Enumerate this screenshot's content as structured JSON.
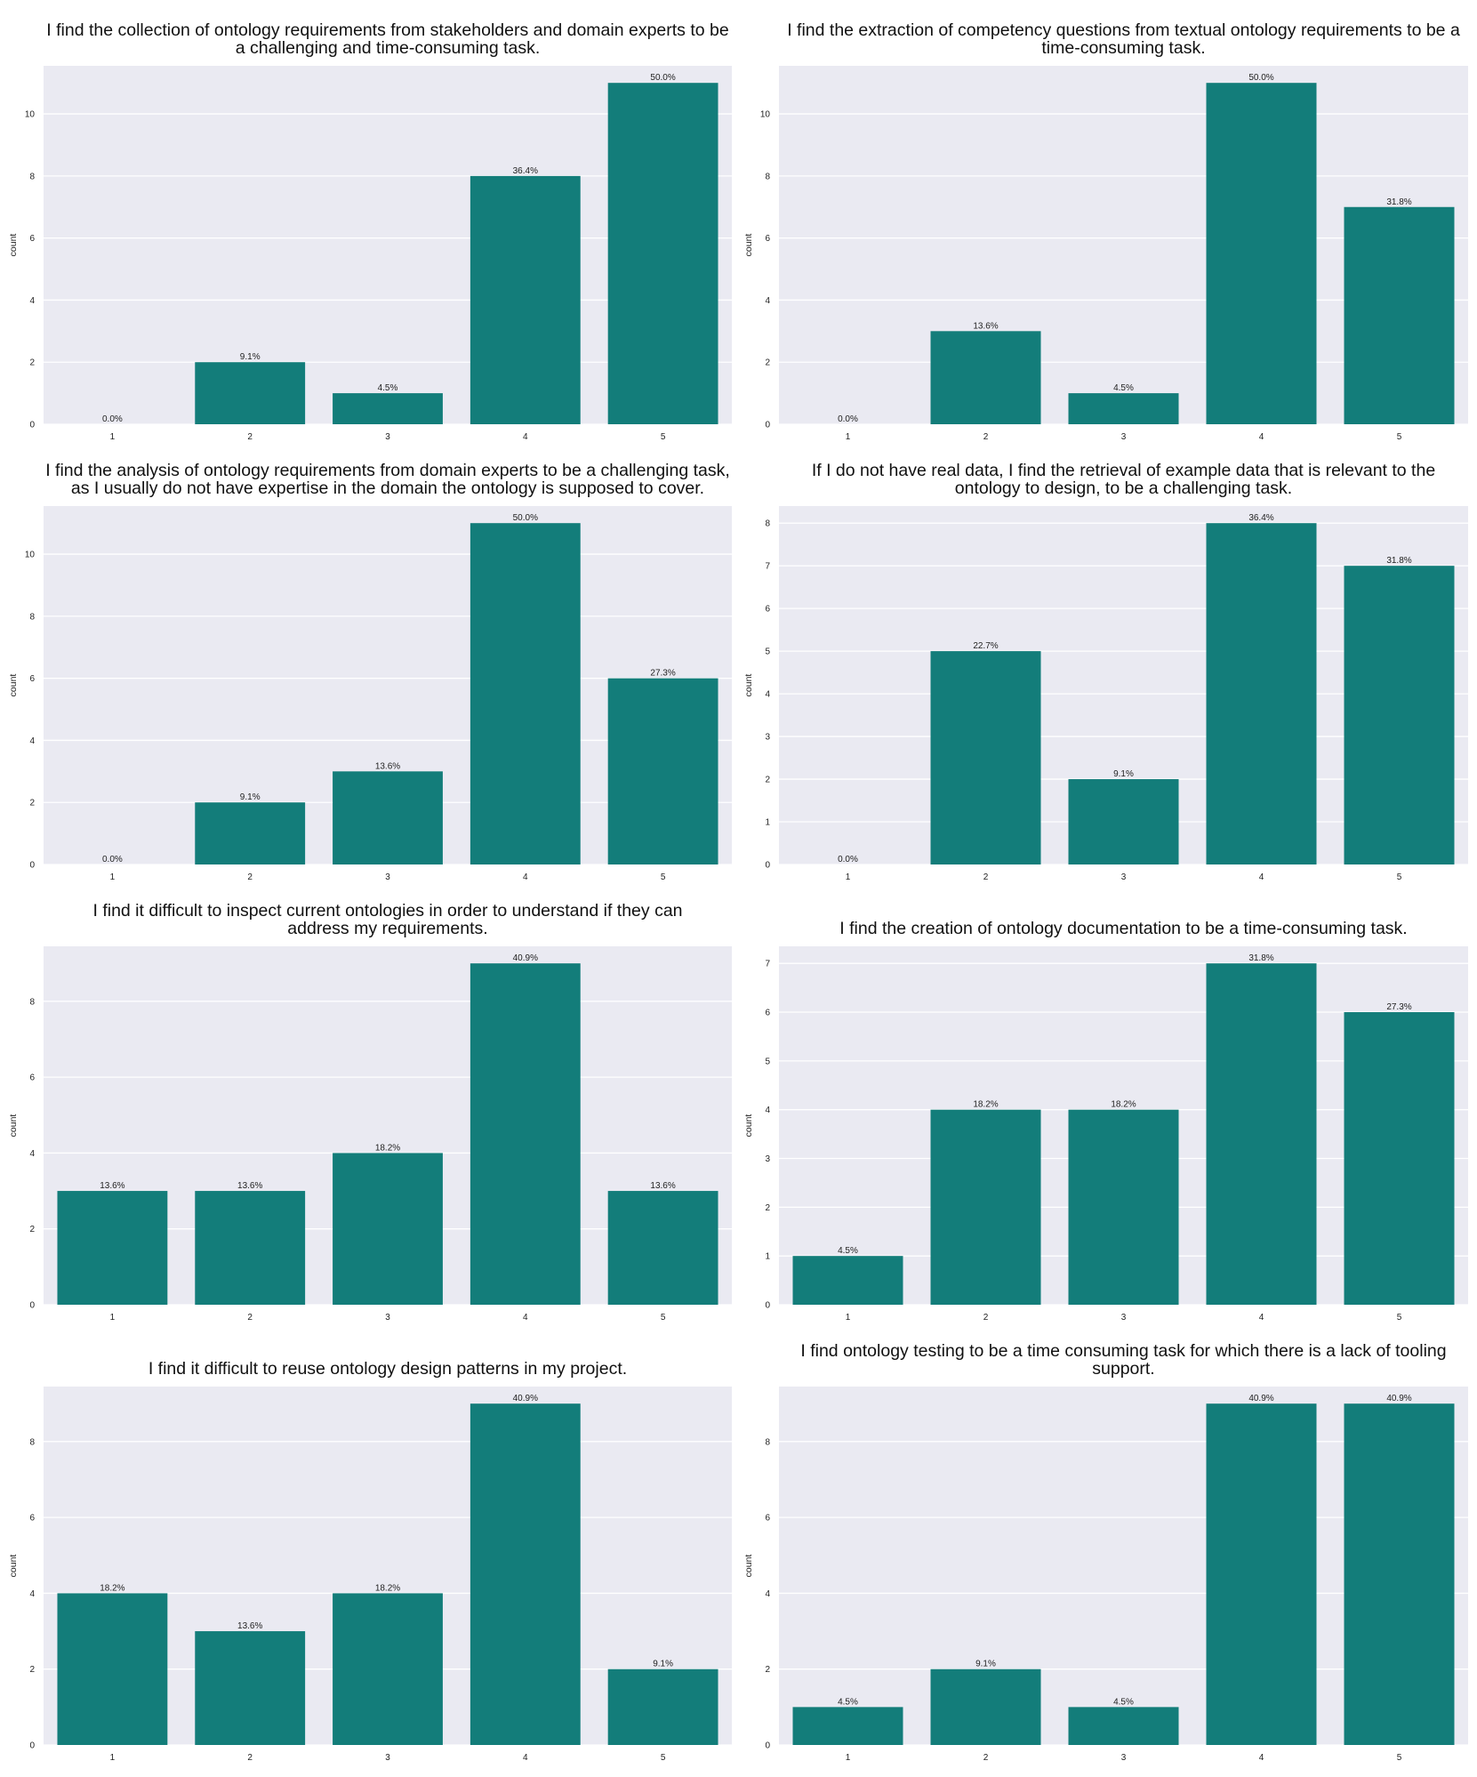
{
  "colors": {
    "bar": "#137d7a",
    "plot_bg": "#eaeaf2",
    "grid": "#ffffff"
  },
  "chart_data": [
    {
      "type": "bar",
      "title_lines": [
        "I find the collection of ontology requirements from stakeholders and domain experts to be",
        "a challenging and time-consuming task."
      ],
      "categories": [
        "1",
        "2",
        "3",
        "4",
        "5"
      ],
      "values": [
        0,
        2,
        1,
        8,
        11
      ],
      "labels": [
        "0.0%",
        "9.1%",
        "4.5%",
        "36.4%",
        "50.0%"
      ],
      "ylabel": "count",
      "ylim": [
        0,
        11.55
      ],
      "yticks": [
        0,
        2,
        4,
        6,
        8,
        10
      ],
      "grid": true
    },
    {
      "type": "bar",
      "title_lines": [
        "I find the extraction of competency questions from textual ontology requirements to be a",
        "time-consuming task."
      ],
      "categories": [
        "1",
        "2",
        "3",
        "4",
        "5"
      ],
      "values": [
        0,
        3,
        1,
        11,
        7
      ],
      "labels": [
        "0.0%",
        "13.6%",
        "4.5%",
        "50.0%",
        "31.8%"
      ],
      "ylabel": "count",
      "ylim": [
        0,
        11.55
      ],
      "yticks": [
        0,
        2,
        4,
        6,
        8,
        10
      ],
      "grid": true
    },
    {
      "type": "bar",
      "title_lines": [
        "I find the analysis of ontology requirements from domain experts to be a challenging task,",
        "as I usually do not have expertise in the domain the ontology is supposed to cover."
      ],
      "categories": [
        "1",
        "2",
        "3",
        "4",
        "5"
      ],
      "values": [
        0,
        2,
        3,
        11,
        6
      ],
      "labels": [
        "0.0%",
        "9.1%",
        "13.6%",
        "50.0%",
        "27.3%"
      ],
      "ylabel": "count",
      "ylim": [
        0,
        11.55
      ],
      "yticks": [
        0,
        2,
        4,
        6,
        8,
        10
      ],
      "grid": true
    },
    {
      "type": "bar",
      "title_lines": [
        "If I do not have real data, I find the retrieval of example data that is relevant to the",
        "ontology to design, to be a challenging task."
      ],
      "categories": [
        "1",
        "2",
        "3",
        "4",
        "5"
      ],
      "values": [
        0,
        5,
        2,
        8,
        7
      ],
      "labels": [
        "0.0%",
        "22.7%",
        "9.1%",
        "36.4%",
        "31.8%"
      ],
      "ylabel": "count",
      "ylim": [
        0,
        8.4
      ],
      "yticks": [
        0,
        1,
        2,
        3,
        4,
        5,
        6,
        7,
        8
      ],
      "grid": true
    },
    {
      "type": "bar",
      "title_lines": [
        "I find it difficult to inspect current ontologies in order to understand if they can",
        "address my requirements."
      ],
      "categories": [
        "1",
        "2",
        "3",
        "4",
        "5"
      ],
      "values": [
        3,
        3,
        4,
        9,
        3
      ],
      "labels": [
        "13.6%",
        "13.6%",
        "18.2%",
        "40.9%",
        "13.6%"
      ],
      "ylabel": "count",
      "ylim": [
        0,
        9.45
      ],
      "yticks": [
        0,
        2,
        4,
        6,
        8
      ],
      "grid": true
    },
    {
      "type": "bar",
      "title_lines": [
        "I find the creation of ontology documentation to be a time-consuming task."
      ],
      "categories": [
        "1",
        "2",
        "3",
        "4",
        "5"
      ],
      "values": [
        1,
        4,
        4,
        7,
        6
      ],
      "labels": [
        "4.5%",
        "18.2%",
        "18.2%",
        "31.8%",
        "27.3%"
      ],
      "ylabel": "count",
      "ylim": [
        0,
        7.35
      ],
      "yticks": [
        0,
        1,
        2,
        3,
        4,
        5,
        6,
        7
      ],
      "grid": true
    },
    {
      "type": "bar",
      "title_lines": [
        "I find it difficult to reuse ontology design patterns in my project."
      ],
      "categories": [
        "1",
        "2",
        "3",
        "4",
        "5"
      ],
      "values": [
        4,
        3,
        4,
        9,
        2
      ],
      "labels": [
        "18.2%",
        "13.6%",
        "18.2%",
        "40.9%",
        "9.1%"
      ],
      "ylabel": "count",
      "ylim": [
        0,
        9.45
      ],
      "yticks": [
        0,
        2,
        4,
        6,
        8
      ],
      "grid": true
    },
    {
      "type": "bar",
      "title_lines": [
        "I find ontology testing to be a time consuming task for which there is a lack of tooling",
        "support."
      ],
      "categories": [
        "1",
        "2",
        "3",
        "4",
        "5"
      ],
      "values": [
        1,
        2,
        1,
        9,
        9
      ],
      "labels": [
        "4.5%",
        "9.1%",
        "4.5%",
        "40.9%",
        "40.9%"
      ],
      "ylabel": "count",
      "ylim": [
        0,
        9.45
      ],
      "yticks": [
        0,
        2,
        4,
        6,
        8
      ],
      "grid": true
    }
  ]
}
